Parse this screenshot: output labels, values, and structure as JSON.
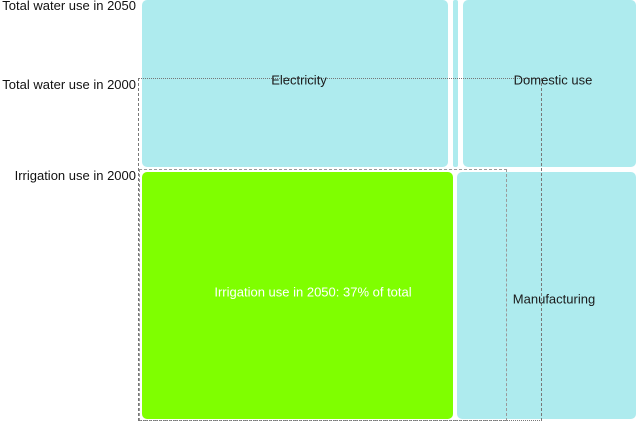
{
  "chart_data": {
    "type": "treemap",
    "row_labels": [
      "Total water use in 2050",
      "Total water use in 2000",
      "Irrigation use in 2000"
    ],
    "tiles": [
      {
        "name": "Electricity",
        "label": "Electricity",
        "color": "#aeebee"
      },
      {
        "name": "Domestic use",
        "label": "Domestic use",
        "color": "#aeebee"
      },
      {
        "name": "Irrigation use in 2050",
        "label": "Irrigation use in 2050: 37% of total",
        "share_percent": 37,
        "color": "#7fff00"
      },
      {
        "name": "Manufacturing",
        "label": "Manufacturing",
        "color": "#aeebee"
      }
    ]
  }
}
